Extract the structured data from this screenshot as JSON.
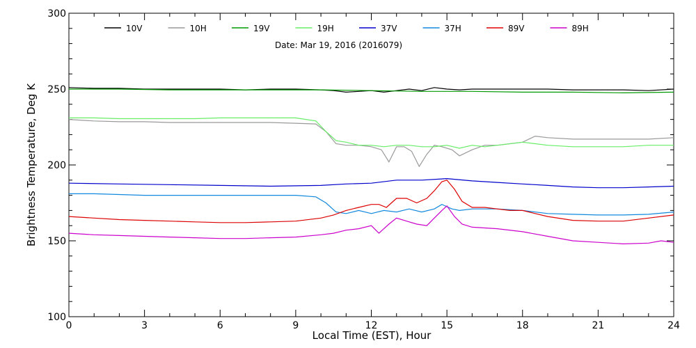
{
  "chart_data": {
    "type": "line",
    "xlabel": "Local Time (EST), Hour",
    "ylabel": "Brightness Temperature, Deg K",
    "annotation": "Date: Mar 19, 2016 (2016079)",
    "xlim": [
      0,
      24
    ],
    "ylim": [
      100,
      300
    ],
    "xticks": [
      0,
      3,
      6,
      9,
      12,
      15,
      18,
      21,
      24
    ],
    "yticks": [
      100,
      150,
      200,
      250,
      300
    ],
    "grid": false,
    "legend_position": "top",
    "series": [
      {
        "name": "10V",
        "color": "#000000",
        "x": [
          0,
          1,
          2,
          3,
          4,
          5,
          6,
          7,
          8,
          9,
          10,
          10.5,
          11,
          11.5,
          12,
          12.5,
          13,
          13.5,
          14,
          14.5,
          15,
          15.5,
          16,
          17,
          18,
          19,
          20,
          21,
          22,
          23,
          24
        ],
        "y": [
          251,
          250.5,
          250.5,
          250,
          250,
          250,
          250,
          249.5,
          250,
          250,
          249.5,
          249,
          248,
          248.5,
          249,
          248,
          249,
          250,
          249,
          251,
          250,
          249.5,
          250,
          250,
          250,
          250,
          249.5,
          249.5,
          249.5,
          249,
          250
        ]
      },
      {
        "name": "10H",
        "color": "#999999",
        "x": [
          0,
          1,
          2,
          3,
          4,
          5,
          6,
          7,
          8,
          9,
          9.8,
          10.2,
          10.6,
          11,
          11.5,
          12,
          12.4,
          12.7,
          13,
          13.3,
          13.6,
          13.9,
          14.2,
          14.5,
          14.8,
          15.2,
          15.5,
          16,
          16.5,
          17,
          17.5,
          18,
          18.5,
          19,
          20,
          21,
          22,
          23,
          24
        ],
        "y": [
          230,
          229,
          228.5,
          228.5,
          228,
          228,
          228,
          228,
          228,
          227.5,
          227,
          222,
          214,
          213,
          213,
          212,
          210,
          202,
          212,
          212,
          209,
          199,
          207,
          213,
          212,
          210,
          206,
          210,
          213,
          213,
          214,
          215,
          219,
          218,
          217,
          217,
          217,
          217,
          218
        ]
      },
      {
        "name": "19V",
        "color": "#009900",
        "x": [
          0,
          2,
          4,
          6,
          8,
          10,
          12,
          14,
          16,
          18,
          20,
          22,
          24
        ],
        "y": [
          250,
          250,
          249.5,
          249.5,
          249.5,
          249.5,
          249,
          248.5,
          248.5,
          248,
          248,
          247.5,
          248
        ]
      },
      {
        "name": "19H",
        "color": "#66ee66",
        "x": [
          0,
          1,
          2,
          3,
          4,
          5,
          6,
          7,
          8,
          9,
          9.8,
          10.2,
          10.6,
          11,
          11.5,
          12,
          12.5,
          13,
          13.5,
          14,
          14.5,
          15,
          15.5,
          16,
          16.5,
          17,
          18,
          19,
          20,
          21,
          22,
          23,
          24
        ],
        "y": [
          231,
          231,
          230.5,
          230.5,
          230.5,
          230.5,
          231,
          231,
          231,
          231,
          229,
          222,
          216,
          215,
          213,
          213,
          212,
          213,
          213,
          212,
          212,
          213,
          211,
          213,
          212,
          213,
          215,
          213,
          212,
          212,
          212,
          213,
          213
        ]
      },
      {
        "name": "37V",
        "color": "#0000cc",
        "x": [
          0,
          2,
          4,
          6,
          8,
          10,
          11,
          12,
          13,
          14,
          15,
          16,
          17,
          18,
          19,
          20,
          21,
          22,
          23,
          24
        ],
        "y": [
          188,
          187.5,
          187,
          186.5,
          186,
          186.5,
          187.5,
          188,
          190,
          190,
          191,
          189.5,
          188.5,
          187.5,
          186.5,
          185.5,
          185,
          185,
          185.5,
          186
        ]
      },
      {
        "name": "37H",
        "color": "#1188dd",
        "x": [
          0,
          1,
          2,
          3,
          4,
          5,
          6,
          7,
          8,
          9,
          9.8,
          10.2,
          10.6,
          11,
          11.5,
          12,
          12.5,
          13,
          13.5,
          14,
          14.5,
          14.8,
          15.2,
          15.5,
          16,
          17,
          18,
          19,
          20,
          21,
          22,
          23,
          24
        ],
        "y": [
          181,
          181,
          180.5,
          180,
          180,
          180,
          180,
          180,
          180,
          180,
          179,
          175,
          169,
          168,
          170,
          168,
          170,
          169,
          171,
          169,
          171,
          174,
          171,
          170,
          171,
          171,
          170,
          168,
          167.5,
          167,
          167,
          167.5,
          169
        ]
      },
      {
        "name": "89V",
        "color": "#dd0000",
        "x": [
          0,
          1,
          2,
          3,
          4,
          5,
          6,
          7,
          8,
          9,
          10,
          10.5,
          11,
          11.5,
          12,
          12.3,
          12.6,
          13,
          13.4,
          13.8,
          14.2,
          14.5,
          14.8,
          15,
          15.3,
          15.6,
          16,
          16.5,
          17,
          17.5,
          18,
          18.5,
          19,
          20,
          21,
          22,
          23,
          24
        ],
        "y": [
          166,
          165,
          164,
          163.5,
          163,
          162.5,
          162,
          162,
          162.5,
          163,
          165,
          167,
          170,
          172,
          174,
          174,
          172,
          178,
          178,
          175,
          178,
          183,
          189,
          190,
          184,
          176,
          172,
          172,
          171,
          170,
          170,
          168,
          166,
          163.5,
          163,
          163,
          165,
          167
        ]
      },
      {
        "name": "89H",
        "color": "#cc00cc",
        "x": [
          0,
          1,
          2,
          3,
          4,
          5,
          6,
          7,
          8,
          9,
          10,
          10.5,
          11,
          11.5,
          12,
          12.3,
          12.7,
          13,
          13.4,
          13.8,
          14.2,
          14.5,
          14.8,
          15,
          15.3,
          15.6,
          16,
          17,
          18,
          19,
          20,
          21,
          22,
          23,
          23.5,
          24
        ],
        "y": [
          155,
          154,
          153.5,
          153,
          152.5,
          152,
          151.5,
          151.5,
          152,
          152.5,
          154,
          155,
          157,
          158,
          160,
          155,
          161,
          165,
          163,
          161,
          160,
          165,
          170,
          173,
          166,
          161,
          159,
          158,
          156,
          153,
          150,
          149,
          148,
          148.5,
          150,
          149
        ]
      }
    ]
  }
}
